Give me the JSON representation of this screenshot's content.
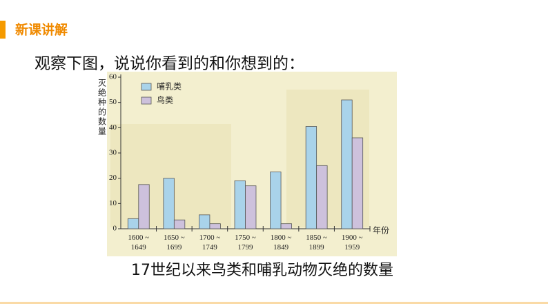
{
  "header": {
    "title": "新课讲解"
  },
  "question": "观察下图，说说你看到的和你想到的：",
  "chart_data": {
    "type": "bar",
    "title": "17世纪以来鸟类和哺乳动物灭绝的数量",
    "y_label": "灭绝种的数量",
    "x_label": "年份",
    "categories": [
      "1600 ~\n1649",
      "1650 ~\n1699",
      "1700 ~\n1749",
      "1750 ~\n1799",
      "1800 ~\n1849",
      "1850 ~\n1899",
      "1900 ~\n1959"
    ],
    "series": [
      {
        "name": "哺乳类",
        "color": "#a9d3ea",
        "values": [
          4,
          20,
          5.5,
          19,
          22.5,
          40.5,
          51
        ]
      },
      {
        "name": "鸟类",
        "color": "#cdc1dc",
        "values": [
          17.5,
          3.5,
          2,
          17,
          2,
          25,
          36
        ]
      }
    ],
    "ylim": [
      0,
      60
    ],
    "yticks": [
      0,
      10,
      20,
      30,
      40,
      50,
      60
    ],
    "legend": "upper left"
  }
}
